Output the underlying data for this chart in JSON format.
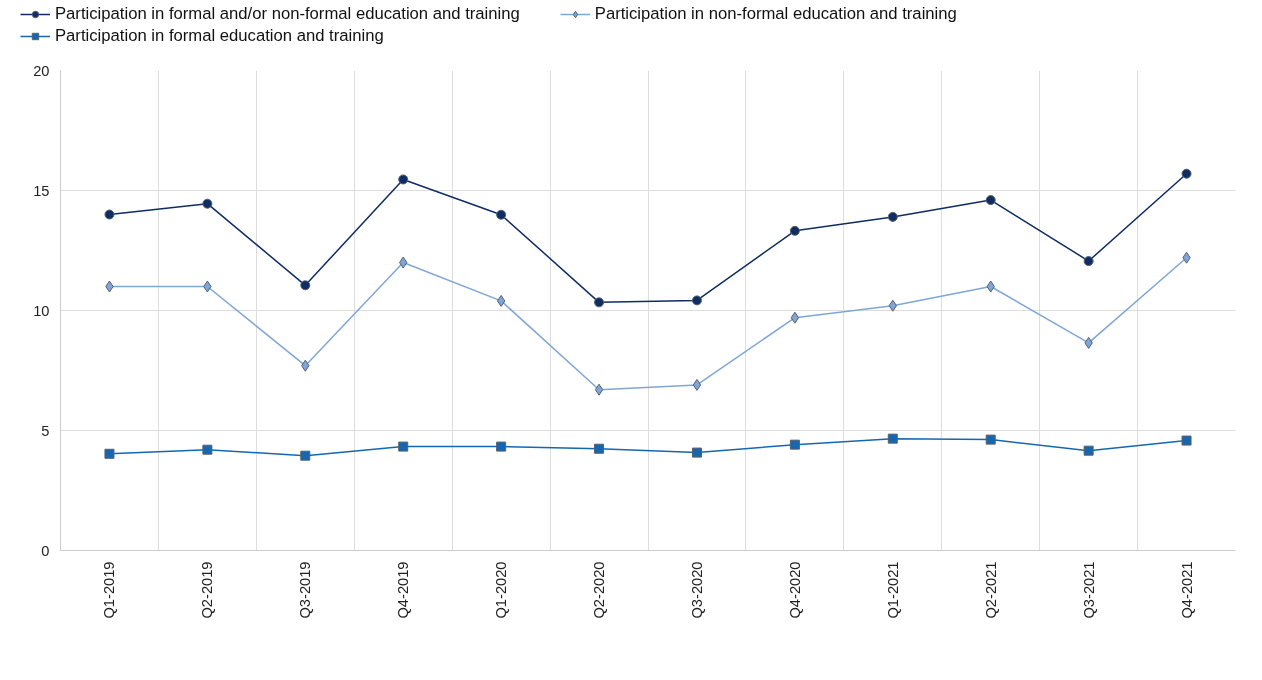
{
  "chart_data": {
    "type": "line",
    "categories": [
      "Q1-2019",
      "Q2-2019",
      "Q3-2019",
      "Q4-2019",
      "Q1-2020",
      "Q2-2020",
      "Q3-2020",
      "Q4-2020",
      "Q1-2021",
      "Q2-2021",
      "Q3-2021",
      "Q4-2021"
    ],
    "series": [
      {
        "name": "Participation in formal and/or non-formal education and training",
        "color": "#0f2d63",
        "marker": "circle",
        "values": [
          14.0,
          14.45,
          11.05,
          15.46,
          13.99,
          10.34,
          10.42,
          13.32,
          13.9,
          14.6,
          12.06,
          15.7
        ]
      },
      {
        "name": "Participation in non-formal education and training",
        "color": "#7fa6d6",
        "marker": "diamond",
        "values": [
          11.0,
          11.0,
          7.7,
          12.0,
          10.4,
          6.7,
          6.9,
          9.7,
          10.2,
          11.0,
          8.65,
          12.2
        ]
      },
      {
        "name": "Participation in formal education and training",
        "color": "#1667b0",
        "marker": "square",
        "values": [
          4.03,
          4.2,
          3.95,
          4.33,
          4.33,
          4.24,
          4.08,
          4.41,
          4.66,
          4.62,
          4.16,
          4.58
        ]
      }
    ],
    "ylim": [
      0,
      20
    ],
    "yticks": [
      0,
      5,
      10,
      15,
      20
    ],
    "grid": true,
    "legend": "top left",
    "line_style": "solid"
  }
}
